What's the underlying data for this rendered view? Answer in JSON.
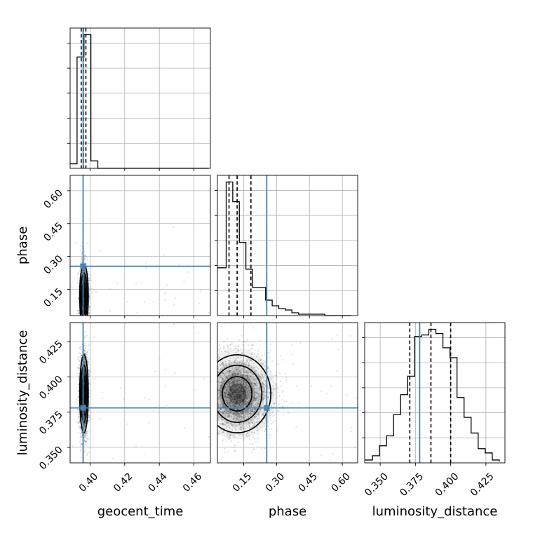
{
  "chart_data": {
    "type": "corner",
    "parameters": [
      {
        "name": "geocent_time",
        "xlabel": "geocent_time",
        "lim": [
          0.3885,
          0.4695
        ],
        "ticks": [
          0.4,
          0.42,
          0.44,
          0.46
        ],
        "tick_labels": [
          "0.40",
          "0.42",
          "0.44",
          "0.46"
        ]
      },
      {
        "name": "phase",
        "xlabel": "phase",
        "lim": [
          0.03,
          0.67
        ],
        "ticks": [
          0.15,
          0.3,
          0.45,
          0.6
        ],
        "tick_labels": [
          "0.15",
          "0.30",
          "0.45",
          "0.60"
        ]
      },
      {
        "name": "luminosity_distance",
        "xlabel": "luminosity_distance",
        "lim": [
          0.339,
          0.4385
        ],
        "ticks": [
          0.35,
          0.375,
          0.4,
          0.425
        ],
        "tick_labels": [
          "0.350",
          "0.375",
          "0.400",
          "0.425"
        ]
      }
    ],
    "y_axis_labels": [
      {
        "row": 1,
        "text": "phase",
        "ticks": [
          0.15,
          0.3,
          0.45,
          0.6
        ],
        "tick_labels": [
          "0.15",
          "0.30",
          "0.45",
          "0.60"
        ]
      },
      {
        "row": 2,
        "text": "luminosity_distance",
        "ticks": [
          0.35,
          0.375,
          0.4,
          0.425
        ],
        "tick_labels": [
          "0.350",
          "0.375",
          "0.400",
          "0.425"
        ]
      }
    ],
    "truths": [
      0.396,
      0.255,
      0.378
    ],
    "quantiles": [
      [
        0.3949,
        0.3962,
        0.3976
      ],
      [
        0.083,
        0.12,
        0.183
      ],
      [
        0.371,
        0.386,
        0.4
      ]
    ],
    "histograms": [
      {
        "bins": [
          0.3885,
          0.3925,
          0.3965,
          0.4005,
          0.4045,
          0.4085,
          0.4125,
          0.4165,
          0.4205,
          0.4245,
          0.4285,
          0.4325,
          0.4365,
          0.4405,
          0.4445,
          0.4485,
          0.4525,
          0.4565,
          0.4605,
          0.4645,
          0.4685
        ],
        "counts": [
          3,
          75,
          90,
          5,
          0,
          0,
          0,
          0,
          0,
          0,
          0,
          0,
          0,
          0,
          0,
          0,
          0,
          0,
          0,
          0
        ]
      },
      {
        "bins": [
          0.04,
          0.07,
          0.1,
          0.13,
          0.16,
          0.19,
          0.22,
          0.25,
          0.28,
          0.31,
          0.34,
          0.37,
          0.4,
          0.43,
          0.46,
          0.49,
          0.52,
          0.55,
          0.58,
          0.61,
          0.64
        ],
        "counts": [
          34,
          95,
          81,
          52,
          33,
          20,
          20,
          11,
          7,
          5,
          4,
          2,
          1,
          1,
          1,
          1,
          0,
          0,
          0,
          0
        ]
      },
      {
        "bins": [
          0.3395,
          0.3445,
          0.3495,
          0.3545,
          0.3595,
          0.3645,
          0.3695,
          0.3745,
          0.3795,
          0.3845,
          0.3895,
          0.3945,
          0.3995,
          0.4045,
          0.4095,
          0.4145,
          0.4195,
          0.4245,
          0.4295,
          0.4345
        ],
        "counts": [
          2,
          5,
          12,
          19,
          34,
          48,
          61,
          89,
          90,
          94,
          91,
          81,
          74,
          46,
          32,
          21,
          10,
          7,
          2,
          1
        ]
      }
    ],
    "scatter_2d": [
      {
        "x_param": 0,
        "y_param": 1,
        "center": [
          0.3965,
          0.12
        ],
        "spread": [
          0.0012,
          0.07
        ],
        "n": 2200,
        "outliers": 45
      },
      {
        "x_param": 0,
        "y_param": 2,
        "center": [
          0.3965,
          0.388
        ],
        "spread": [
          0.0012,
          0.0135
        ],
        "n": 2600,
        "outliers": 35
      },
      {
        "x_param": 1,
        "y_param": 2,
        "center": [
          0.12,
          0.388
        ],
        "spread": [
          0.075,
          0.0135
        ],
        "n": 3000,
        "outliers": 60
      }
    ]
  }
}
